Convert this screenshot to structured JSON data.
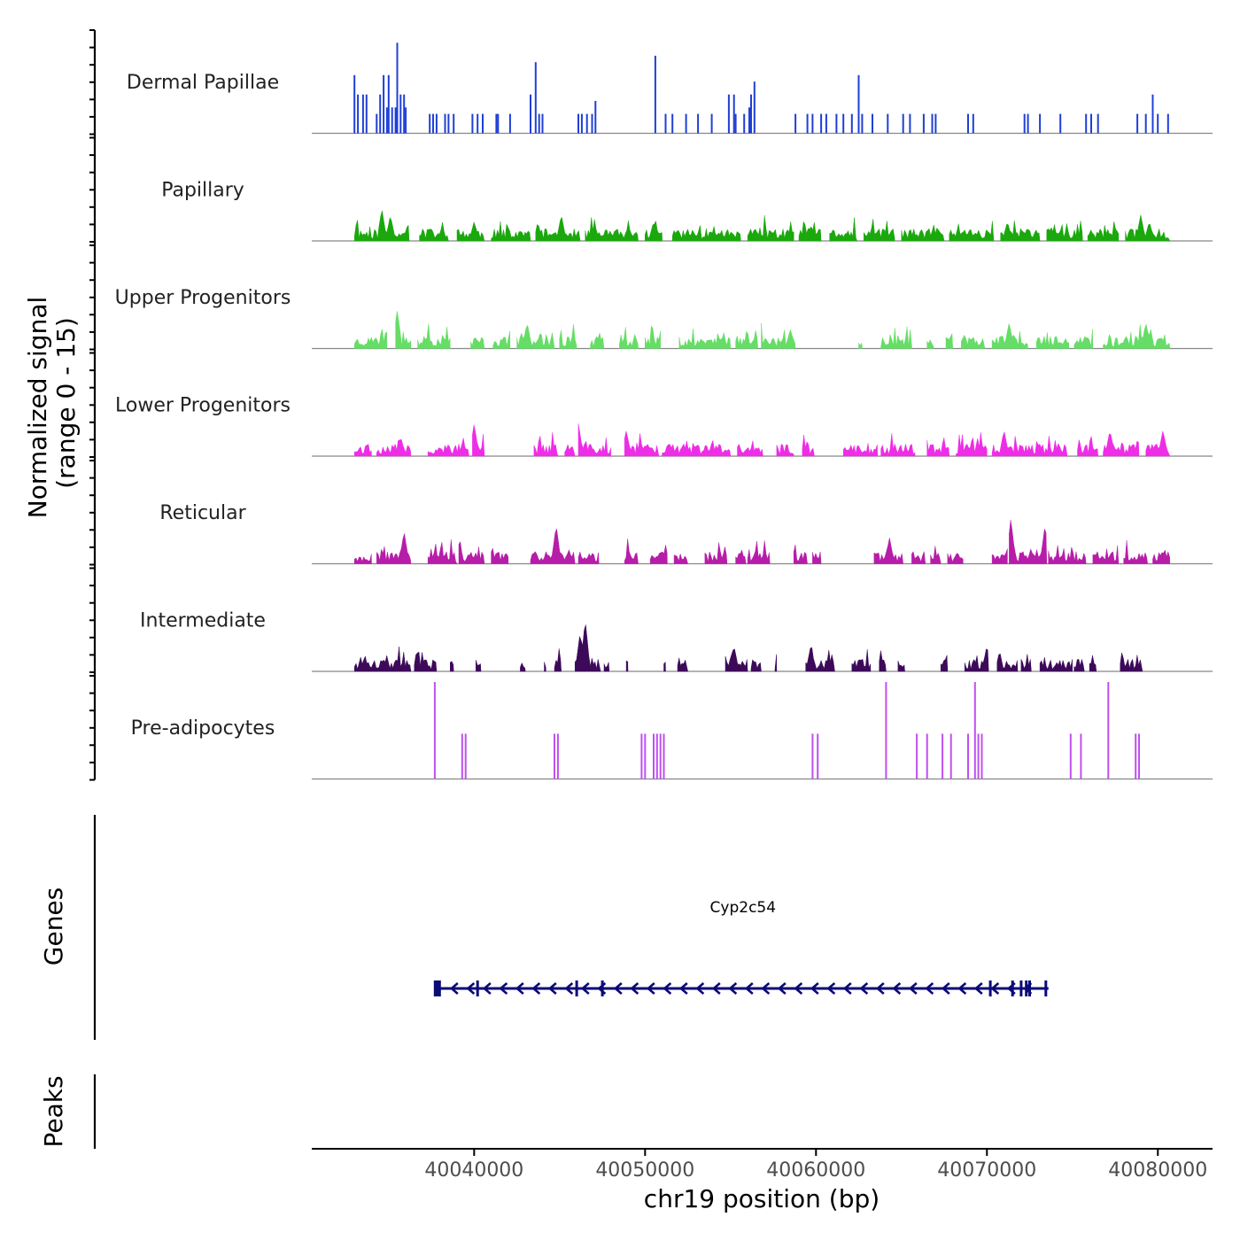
{
  "chart_data": {
    "type": "area",
    "title": "",
    "ylabel": "Normalized signal",
    "ylabel_sub": "(range 0 - 15)",
    "xlabel": "chr19 position (bp)",
    "xlim": [
      40030500,
      40083200
    ],
    "ylim": [
      0,
      15
    ],
    "x_ticks": [
      40040000,
      40050000,
      40060000,
      40070000,
      40080000
    ],
    "x_tick_labels": [
      "40040000",
      "40050000",
      "40060000",
      "40070000",
      "40080000"
    ],
    "series": [
      {
        "name": "Dermal Papillae",
        "color": "#1f3fd6",
        "style": "spikes",
        "points": [
          [
            40033000,
            9
          ],
          [
            40033200,
            6
          ],
          [
            40033500,
            6
          ],
          [
            40033700,
            6
          ],
          [
            40034300,
            3
          ],
          [
            40034500,
            6
          ],
          [
            40034700,
            9
          ],
          [
            40034900,
            4
          ],
          [
            40035000,
            9
          ],
          [
            40035200,
            4
          ],
          [
            40035400,
            4
          ],
          [
            40035500,
            14
          ],
          [
            40035700,
            6
          ],
          [
            40035900,
            6
          ],
          [
            40036000,
            4
          ],
          [
            40037400,
            3
          ],
          [
            40037600,
            3
          ],
          [
            40037800,
            3
          ],
          [
            40038300,
            3
          ],
          [
            40038500,
            3
          ],
          [
            40038800,
            3
          ],
          [
            40039900,
            3
          ],
          [
            40040200,
            3
          ],
          [
            40040500,
            3
          ],
          [
            40041300,
            3
          ],
          [
            40041400,
            3
          ],
          [
            40042100,
            3
          ],
          [
            40043300,
            6
          ],
          [
            40043600,
            11
          ],
          [
            40043800,
            3
          ],
          [
            40044000,
            3
          ],
          [
            40046100,
            3
          ],
          [
            40046300,
            3
          ],
          [
            40046600,
            3
          ],
          [
            40046900,
            3
          ],
          [
            40047100,
            5
          ],
          [
            40050600,
            12
          ],
          [
            40051200,
            3
          ],
          [
            40051600,
            3
          ],
          [
            40052400,
            3
          ],
          [
            40053100,
            3
          ],
          [
            40053900,
            3
          ],
          [
            40054900,
            6
          ],
          [
            40055200,
            6
          ],
          [
            40055300,
            3
          ],
          [
            40055800,
            3
          ],
          [
            40056100,
            4
          ],
          [
            40056200,
            6
          ],
          [
            40056400,
            8
          ],
          [
            40058800,
            3
          ],
          [
            40059500,
            3
          ],
          [
            40059800,
            3
          ],
          [
            40060300,
            3
          ],
          [
            40060600,
            3
          ],
          [
            40061200,
            3
          ],
          [
            40061600,
            3
          ],
          [
            40062100,
            3
          ],
          [
            40062500,
            9
          ],
          [
            40062700,
            3
          ],
          [
            40063300,
            3
          ],
          [
            40064200,
            3
          ],
          [
            40065100,
            3
          ],
          [
            40065500,
            3
          ],
          [
            40066300,
            3
          ],
          [
            40066800,
            3
          ],
          [
            40067000,
            3
          ],
          [
            40068900,
            3
          ],
          [
            40069200,
            3
          ],
          [
            40072200,
            3
          ],
          [
            40072400,
            3
          ],
          [
            40073100,
            3
          ],
          [
            40074300,
            3
          ],
          [
            40075800,
            3
          ],
          [
            40076100,
            3
          ],
          [
            40076500,
            3
          ],
          [
            40078800,
            3
          ],
          [
            40079300,
            3
          ],
          [
            40079700,
            6
          ],
          [
            40080000,
            3
          ],
          [
            40080600,
            3
          ]
        ]
      },
      {
        "name": "Papillary",
        "color": "#1aa80c",
        "style": "dense",
        "seed": 11,
        "regions": [
          [
            40033000,
            40036200
          ],
          [
            40036800,
            40038500
          ],
          [
            40039000,
            40040600
          ],
          [
            40041000,
            40043300
          ],
          [
            40043600,
            40046200
          ],
          [
            40046500,
            40049600
          ],
          [
            40050000,
            40051000
          ],
          [
            40051600,
            40055600
          ],
          [
            40056000,
            40058700
          ],
          [
            40059000,
            40060300
          ],
          [
            40060800,
            40062400
          ],
          [
            40062800,
            40064600
          ],
          [
            40065000,
            40067500
          ],
          [
            40067800,
            40070400
          ],
          [
            40070800,
            40073100
          ],
          [
            40073500,
            40075600
          ],
          [
            40075900,
            40077700
          ],
          [
            40078100,
            40080700
          ]
        ],
        "peaks": [
          [
            40034600,
            5
          ],
          [
            40035100,
            4
          ],
          [
            40040000,
            3
          ],
          [
            40045100,
            4
          ],
          [
            40050500,
            3
          ],
          [
            40071200,
            3
          ],
          [
            40079000,
            4
          ],
          [
            40079500,
            3
          ]
        ]
      },
      {
        "name": "Upper Progenitors",
        "color": "#66dd66",
        "style": "dense",
        "seed": 23,
        "regions": [
          [
            40033000,
            40034900
          ],
          [
            40035400,
            40036300
          ],
          [
            40036700,
            40038600
          ],
          [
            40039800,
            40040600
          ],
          [
            40041100,
            40042100
          ],
          [
            40042500,
            40044700
          ],
          [
            40045000,
            40046000
          ],
          [
            40046800,
            40047600
          ],
          [
            40048500,
            40049600
          ],
          [
            40050000,
            40050900
          ],
          [
            40052000,
            40055000
          ],
          [
            40055300,
            40056600
          ],
          [
            40056800,
            40058800
          ],
          [
            40062500,
            40062700
          ],
          [
            40063800,
            40065600
          ],
          [
            40066500,
            40066900
          ],
          [
            40067600,
            40068000
          ],
          [
            40068500,
            40069900
          ],
          [
            40070300,
            40072400
          ],
          [
            40072900,
            40074800
          ],
          [
            40075100,
            40076200
          ],
          [
            40076800,
            40080700
          ]
        ],
        "peaks": [
          [
            40035500,
            6
          ],
          [
            40043100,
            4
          ],
          [
            40058500,
            3
          ],
          [
            40071300,
            4
          ],
          [
            40079300,
            4
          ]
        ]
      },
      {
        "name": "Lower Progenitors",
        "color": "#ee2de6",
        "style": "dense",
        "seed": 37,
        "regions": [
          [
            40033000,
            40034000
          ],
          [
            40034300,
            40036300
          ],
          [
            40037300,
            40039700
          ],
          [
            40039900,
            40040600
          ],
          [
            40043500,
            40044900
          ],
          [
            40045300,
            40045900
          ],
          [
            40046100,
            40048000
          ],
          [
            40048800,
            40050800
          ],
          [
            40051000,
            40055000
          ],
          [
            40055400,
            40056900
          ],
          [
            40057700,
            40058700
          ],
          [
            40059200,
            40059900
          ],
          [
            40061600,
            40063600
          ],
          [
            40063800,
            40065800
          ],
          [
            40066500,
            40067800
          ],
          [
            40068200,
            40070000
          ],
          [
            40070300,
            40074700
          ],
          [
            40075300,
            40076500
          ],
          [
            40076800,
            40078900
          ],
          [
            40079300,
            40080700
          ]
        ],
        "peaks": [
          [
            40035700,
            3
          ],
          [
            40040000,
            5
          ],
          [
            40046100,
            5
          ],
          [
            40048900,
            4
          ],
          [
            40071000,
            4
          ],
          [
            40077200,
            4
          ],
          [
            40080300,
            4
          ]
        ]
      },
      {
        "name": "Reticular",
        "color": "#b61da9",
        "style": "dense",
        "seed": 49,
        "regions": [
          [
            40033000,
            40034000
          ],
          [
            40034300,
            40036300
          ],
          [
            40037300,
            40039000
          ],
          [
            40039100,
            40040600
          ],
          [
            40041000,
            40042000
          ],
          [
            40043300,
            40045900
          ],
          [
            40046100,
            40047300
          ],
          [
            40048800,
            40049600
          ],
          [
            40050300,
            40051300
          ],
          [
            40051700,
            40052500
          ],
          [
            40053500,
            40054800
          ],
          [
            40055300,
            40055900
          ],
          [
            40056000,
            40057300
          ],
          [
            40058700,
            40059500
          ],
          [
            40059800,
            40060300
          ],
          [
            40063400,
            40065100
          ],
          [
            40065600,
            40066400
          ],
          [
            40066700,
            40067300
          ],
          [
            40067700,
            40068600
          ],
          [
            40070300,
            40071200
          ],
          [
            40071300,
            40073500
          ],
          [
            40073600,
            40075800
          ],
          [
            40076200,
            40077700
          ],
          [
            40078000,
            40079400
          ],
          [
            40079700,
            40080700
          ]
        ],
        "peaks": [
          [
            40035900,
            5
          ],
          [
            40044800,
            6
          ],
          [
            40071400,
            7
          ],
          [
            40073400,
            6
          ],
          [
            40064300,
            4
          ]
        ]
      },
      {
        "name": "Intermediate",
        "color": "#3d0a5a",
        "style": "dense",
        "seed": 61,
        "regions": [
          [
            40033000,
            40036300
          ],
          [
            40036500,
            40037800
          ],
          [
            40038600,
            40038800
          ],
          [
            40040100,
            40040400
          ],
          [
            40042700,
            40043000
          ],
          [
            40044100,
            40044200
          ],
          [
            40044700,
            40045100
          ],
          [
            40045900,
            40047400
          ],
          [
            40047600,
            40047900
          ],
          [
            40048900,
            40049000
          ],
          [
            40051100,
            40051200
          ],
          [
            40051900,
            40052500
          ],
          [
            40054700,
            40056000
          ],
          [
            40056200,
            40056800
          ],
          [
            40057600,
            40057700
          ],
          [
            40059400,
            40061100
          ],
          [
            40062100,
            40063200
          ],
          [
            40063700,
            40064100
          ],
          [
            40064800,
            40065200
          ],
          [
            40067300,
            40067700
          ],
          [
            40068700,
            40070100
          ],
          [
            40070600,
            40071800
          ],
          [
            40072000,
            40072600
          ],
          [
            40073100,
            40075000
          ],
          [
            40075100,
            40075700
          ],
          [
            40076000,
            40076400
          ],
          [
            40077800,
            40079100
          ]
        ],
        "peaks": [
          [
            40045300,
            5
          ],
          [
            40046200,
            6
          ],
          [
            40046500,
            8
          ],
          [
            40055200,
            4
          ],
          [
            40059700,
            4
          ],
          [
            40070000,
            4
          ]
        ]
      },
      {
        "name": "Pre-adipocytes",
        "color": "#c050f0",
        "style": "spikes",
        "points": [
          [
            40037700,
            15
          ],
          [
            40039300,
            7
          ],
          [
            40039500,
            7
          ],
          [
            40044700,
            7
          ],
          [
            40044900,
            7
          ],
          [
            40049800,
            7
          ],
          [
            40050000,
            7
          ],
          [
            40050500,
            7
          ],
          [
            40050700,
            7
          ],
          [
            40050900,
            7
          ],
          [
            40051100,
            7
          ],
          [
            40059800,
            7
          ],
          [
            40060100,
            7
          ],
          [
            40064100,
            15
          ],
          [
            40065900,
            7
          ],
          [
            40066500,
            7
          ],
          [
            40067400,
            7
          ],
          [
            40067900,
            7
          ],
          [
            40068900,
            7
          ],
          [
            40069300,
            15
          ],
          [
            40069500,
            7
          ],
          [
            40069700,
            7
          ],
          [
            40074900,
            7
          ],
          [
            40075500,
            7
          ],
          [
            40077100,
            15
          ],
          [
            40078700,
            7
          ],
          [
            40078900,
            7
          ]
        ]
      }
    ]
  },
  "genes_track": {
    "label": "Genes",
    "color": "#0a0a78",
    "gene": {
      "name": "Cyp2c54",
      "start": 40037850,
      "end": 40073600,
      "strand": "-",
      "exons": [
        40037850,
        40040200,
        40046000,
        40047500,
        40070200,
        40071500,
        40072000,
        40072300,
        40072500,
        40073450
      ]
    }
  },
  "peaks_track": {
    "label": "Peaks"
  }
}
